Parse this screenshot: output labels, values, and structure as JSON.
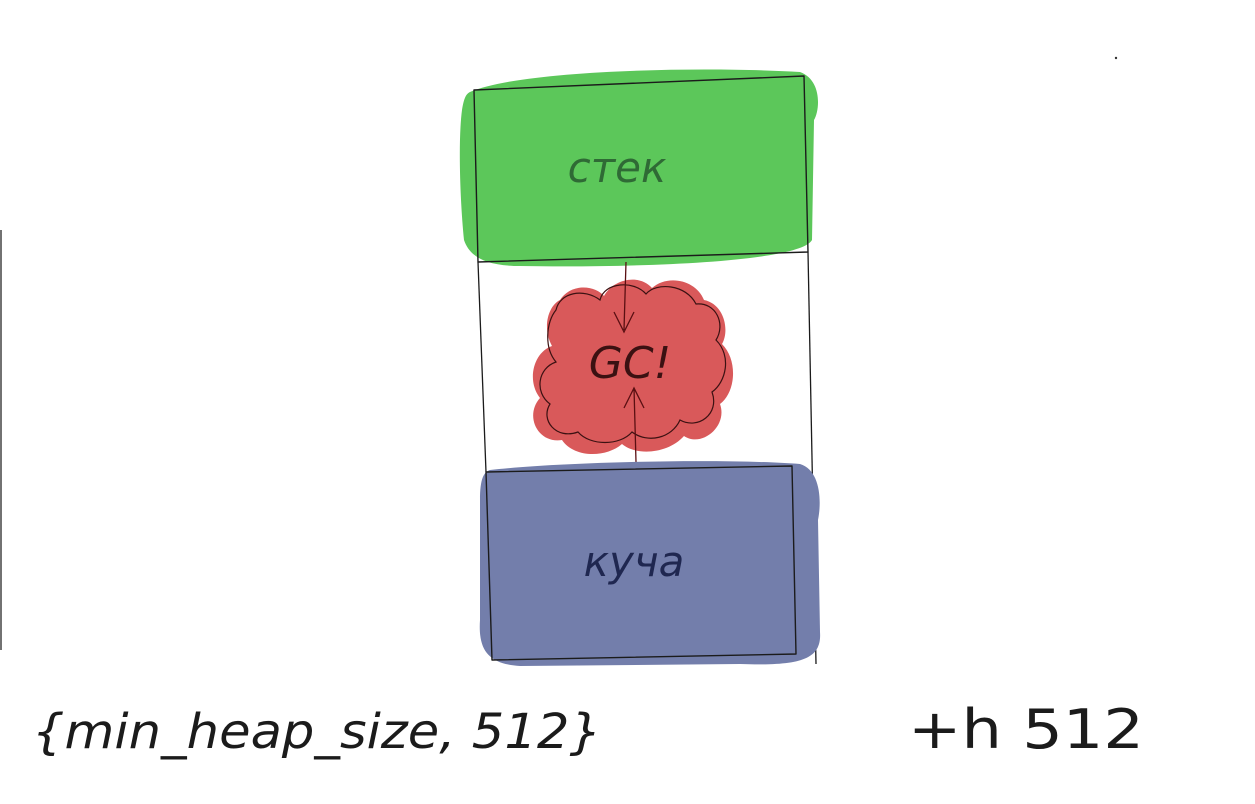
{
  "diagram": {
    "stack_label": "стек",
    "gc_label": "GC!",
    "heap_label": "куча",
    "config_text": "{min_heap_size, 512}",
    "suffix_text": "+h 512"
  },
  "colors": {
    "stack_fill": "#5cc75a",
    "gc_fill": "#d9595a",
    "heap_fill": "#737eab",
    "ink": "#1b1b1b",
    "arrow_ink": "#5a0f12"
  }
}
